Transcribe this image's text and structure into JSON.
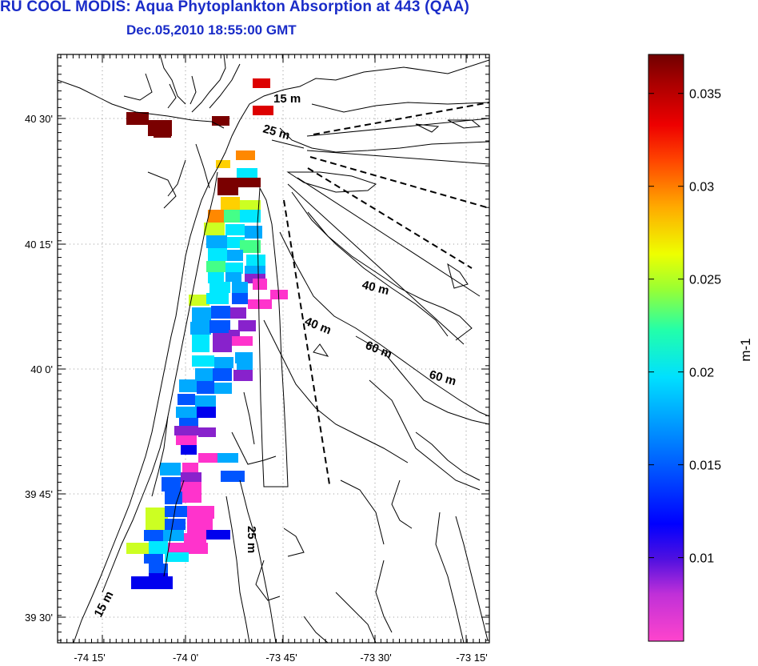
{
  "title": "RU COOL MODIS: Aqua Phytoplankton Absorption at 443 (QAA)",
  "subtitle": "Dec.05,2010 18:55:00 GMT",
  "axes": {
    "lat_labels": [
      "40 30'",
      "40 15'",
      "40 0'",
      "39 45'",
      "39 30'"
    ],
    "lon_labels": [
      "-74 15'",
      "-74 0'",
      "-73 45'",
      "-73 30'",
      "-73 15'"
    ]
  },
  "contour_labels": [
    "15 m",
    "25 m",
    "40 m",
    "60 m",
    "40 m",
    "60 m",
    "25 m",
    "15 m"
  ],
  "colorbar": {
    "label": "m-1",
    "ticks": [
      "0.035",
      "0.03",
      "0.025",
      "0.02",
      "0.015",
      "0.01"
    ],
    "tick_values": [
      0.035,
      0.03,
      0.025,
      0.02,
      0.015,
      0.01
    ],
    "min": 0.0055,
    "max": 0.0371,
    "colors": [
      "#ff44cc",
      "#8822cc",
      "#0000ff",
      "#0088ff",
      "#00e0ff",
      "#44ff99",
      "#ccff22",
      "#ffcc00",
      "#ff7700",
      "#ff1100",
      "#aa0000",
      "#7a0000"
    ]
  }
}
